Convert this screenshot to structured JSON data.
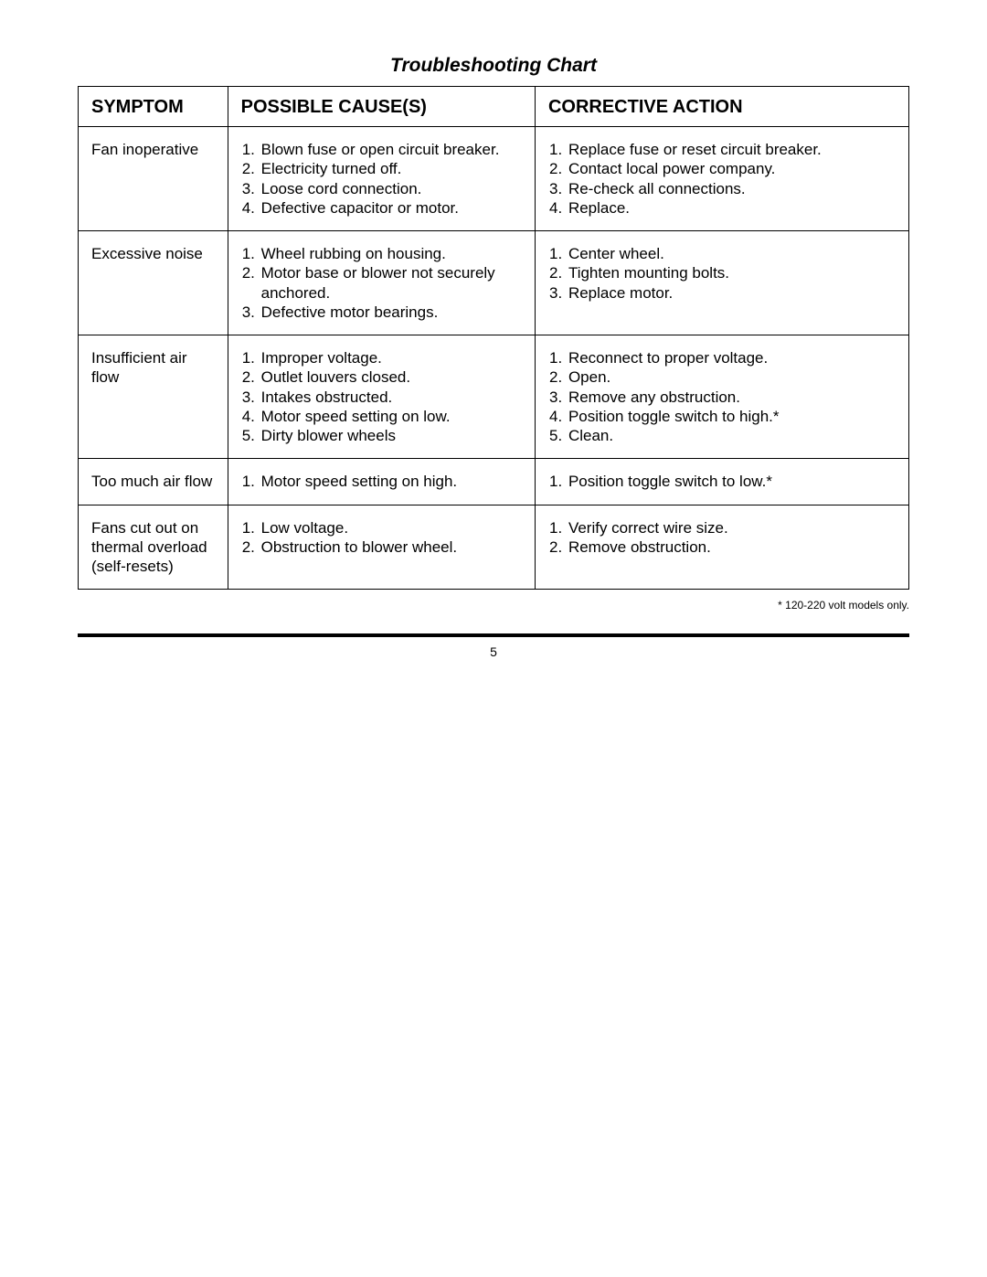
{
  "title": "Troubleshooting Chart",
  "columns": {
    "symptom": "SYMPTOM",
    "causes": "POSSIBLE CAUSE(S)",
    "action": "CORRECTIVE ACTION"
  },
  "rows": [
    {
      "symptom": "Fan inoperative",
      "causes": [
        "Blown fuse or open circuit breaker.",
        "Electricity turned off.",
        "Loose cord connection.",
        "Defective capacitor or motor."
      ],
      "actions": [
        "Replace fuse or reset circuit breaker.",
        "Contact local power company.",
        "Re-check all connections.",
        "Replace."
      ],
      "pad": "row-pad-lg"
    },
    {
      "symptom": "Excessive noise",
      "causes": [
        "Wheel rubbing on housing.",
        "Motor base or blower not securely anchored.",
        "Defective motor bearings."
      ],
      "actions": [
        "Center wheel.",
        "Tighten mounting bolts.",
        "Replace motor."
      ],
      "pad": "row-pad-md"
    },
    {
      "symptom": "Insufficient air flow",
      "causes": [
        "Improper voltage.",
        "Outlet louvers closed.",
        "Intakes obstructed.",
        "Motor speed setting on low.",
        "Dirty blower wheels"
      ],
      "actions": [
        "Reconnect to proper voltage.",
        "Open.",
        "Remove any obstruction.",
        "Position toggle switch to high.*",
        "Clean."
      ],
      "pad": "row-pad-xl"
    },
    {
      "symptom": "Too much air flow",
      "causes": [
        "Motor speed setting on high."
      ],
      "actions": [
        "Position toggle switch to low.*"
      ],
      "pad": "row-pad-sm"
    },
    {
      "symptom": "Fans cut out on thermal overload (self-resets)",
      "causes": [
        "Low voltage.",
        "Obstruction to blower wheel."
      ],
      "actions": [
        "Verify correct wire size.",
        "Remove obstruction."
      ],
      "pad": "row-pad-xs"
    }
  ],
  "footnote": "* 120-220 volt models only.",
  "page_number": "5"
}
